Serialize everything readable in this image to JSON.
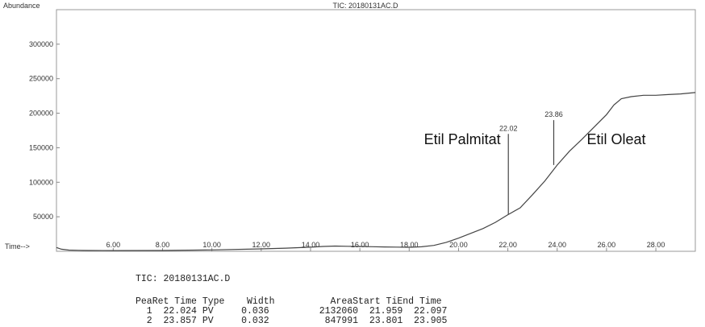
{
  "chart_data": {
    "type": "line",
    "title": "TIC: 20180131AC.D",
    "ylabel": "Abundance",
    "xlabel": "Time-->",
    "xlim": [
      3.7,
      29.6
    ],
    "ylim": [
      0,
      350000
    ],
    "x_ticks": [
      "6.00",
      "8.00",
      "10.00",
      "12.00",
      "14.00",
      "16.00",
      "18.00",
      "20.00",
      "22.00",
      "24.00",
      "26.00",
      "28.00"
    ],
    "y_ticks": [
      "50000",
      "100000",
      "150000",
      "200000",
      "250000",
      "300000"
    ],
    "grid": false,
    "series": [
      {
        "x": [
          3.7,
          3.9,
          4.2,
          4.6,
          5.0,
          6.0,
          8.0,
          10.0,
          12.0,
          13.0,
          14.0,
          14.5,
          15.0,
          15.5,
          16.0,
          16.5,
          17.0,
          17.5,
          18.0,
          18.5,
          19.0,
          19.5,
          20.0,
          20.5,
          21.0,
          21.5,
          22.0,
          22.5,
          23.0,
          23.5,
          24.0,
          24.5,
          25.0,
          25.5,
          26.0,
          26.3,
          26.6,
          27.0,
          27.5,
          28.0,
          28.5,
          29.0,
          29.6
        ],
        "y": [
          5500,
          3000,
          1800,
          1400,
          1200,
          1000,
          1200,
          2000,
          3500,
          4500,
          6000,
          7000,
          7600,
          7200,
          7000,
          6600,
          6300,
          6100,
          5800,
          6500,
          8500,
          13000,
          19000,
          26000,
          33000,
          42000,
          53000,
          63000,
          82000,
          102000,
          125000,
          145000,
          162000,
          180000,
          198000,
          212000,
          221000,
          224000,
          226000,
          226000,
          227000,
          228000,
          230000
        ]
      }
    ],
    "peaks": [
      {
        "label": "22.02",
        "x": 22.02,
        "top": 170000,
        "base": 53000
      },
      {
        "label": "23.86",
        "x": 23.86,
        "top": 190000,
        "base": 125000
      }
    ],
    "annotations": [
      {
        "text": "Etil Palmitat",
        "x": 18.6,
        "y": 155000
      },
      {
        "text": "Etil Oleat",
        "x": 25.2,
        "y": 155000
      }
    ]
  },
  "report": {
    "title": "TIC: 20180131AC.D",
    "header": "PeaRet Time Type    Width          AreaStart TiEnd Time",
    "rows": [
      "  1  22.024 PV     0.036         2132060  21.959  22.097",
      "  2  23.857 PV     0.032          847991  23.801  23.905"
    ]
  }
}
